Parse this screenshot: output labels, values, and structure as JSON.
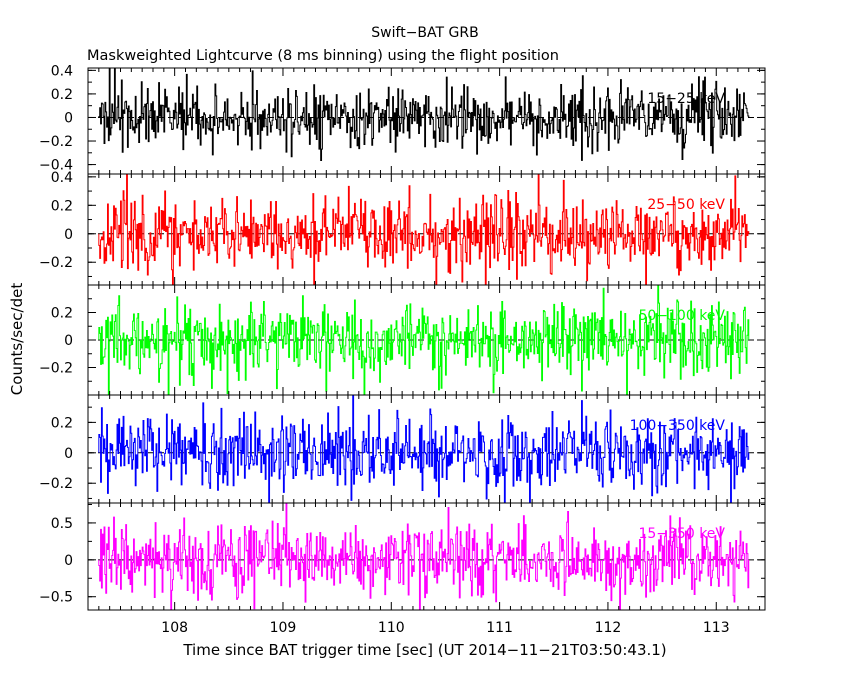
{
  "chart_data": {
    "type": "line",
    "title": "Swift−BAT GRB",
    "subtitle": "Maskweighted Lightcurve (8 ms binning) using the flight position",
    "xlabel": "Time since BAT trigger time [sec] (UT 2014−11−21T03:50:43.1)",
    "ylabel": "Counts/sec/det",
    "xlim": [
      107.2,
      113.45
    ],
    "xticks": [
      108,
      109,
      110,
      111,
      112,
      113
    ],
    "x_tick_labels": [
      "108",
      "109",
      "110",
      "111",
      "112",
      "113"
    ],
    "x_start": 107.3,
    "x_end": 113.3,
    "bin_width": 0.008,
    "grid": false,
    "panels": [
      {
        "label": "15−25 keV",
        "color": "#000000",
        "ylim": [
          -0.48,
          0.42
        ],
        "yticks": [
          -0.4,
          -0.2,
          0,
          0.2,
          0.4
        ],
        "y_tick_labels": [
          "−0.4",
          "−0.2",
          "0",
          "0.2",
          "0.4"
        ],
        "noise_amplitude": 0.13
      },
      {
        "label": "25−50 keV",
        "color": "#ff0000",
        "ylim": [
          -0.36,
          0.42
        ],
        "yticks": [
          -0.2,
          0,
          0.2,
          0.4
        ],
        "y_tick_labels": [
          "−0.2",
          "0",
          "0.2",
          "0.4"
        ],
        "noise_amplitude": 0.13
      },
      {
        "label": "50−100 keV",
        "color": "#00ff00",
        "ylim": [
          -0.4,
          0.4
        ],
        "yticks": [
          -0.2,
          0,
          0.2
        ],
        "y_tick_labels": [
          "−0.2",
          "0",
          "0.2"
        ],
        "noise_amplitude": 0.13
      },
      {
        "label": "100−350 keV",
        "color": "#0000ff",
        "ylim": [
          -0.33,
          0.38
        ],
        "yticks": [
          -0.2,
          0,
          0.2
        ],
        "y_tick_labels": [
          "−0.2",
          "0",
          "0.2"
        ],
        "noise_amplitude": 0.12
      },
      {
        "label": "15−350 keV",
        "color": "#ff00ff",
        "ylim": [
          -0.68,
          0.77
        ],
        "yticks": [
          -0.5,
          0,
          0.5
        ],
        "y_tick_labels": [
          "−0.5",
          "0",
          "0.5"
        ],
        "noise_amplitude": 0.24
      }
    ]
  }
}
